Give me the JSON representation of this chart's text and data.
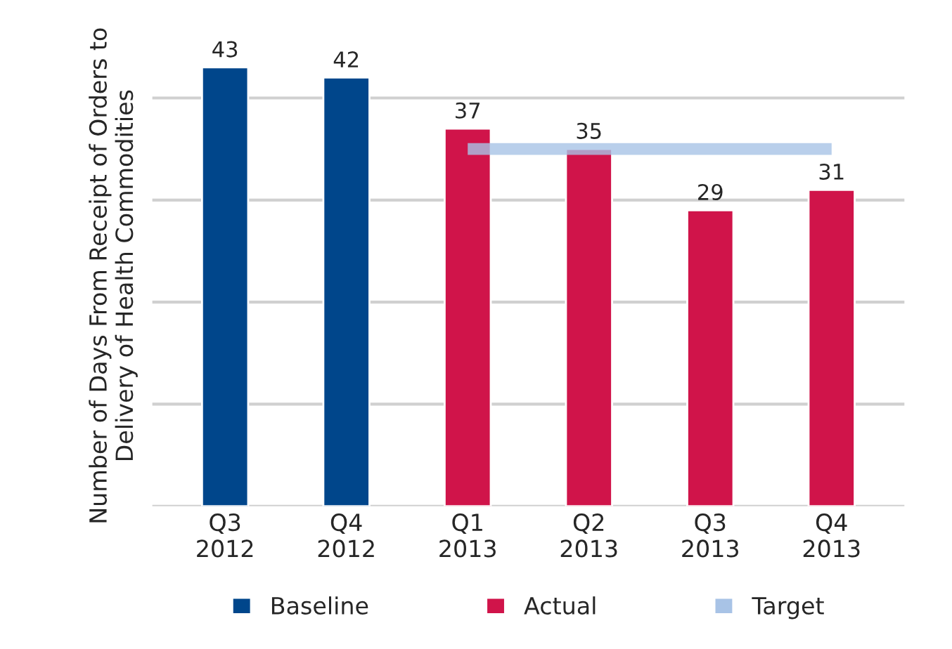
{
  "chart_data": {
    "type": "bar",
    "ylabel": "Number of Days From Receipt of Orders to\nDelivery of Health Commodities",
    "categories": [
      "Q3\n2012",
      "Q4\n2012",
      "Q1\n2013",
      "Q2\n2013",
      "Q3\n2013",
      "Q4\n2013"
    ],
    "series": [
      {
        "name": "Baseline",
        "color": "#00468b",
        "values": [
          43,
          42,
          null,
          null,
          null,
          null
        ],
        "value_labels": [
          "43",
          "42",
          null,
          null,
          null,
          null
        ]
      },
      {
        "name": "Actual",
        "color": "#d0144a",
        "values": [
          null,
          null,
          37,
          35,
          29,
          31
        ],
        "value_labels": [
          null,
          null,
          "37",
          "35",
          "29",
          "31"
        ]
      },
      {
        "name": "Target",
        "type": "line",
        "color": "#a8c3e6",
        "values": [
          null,
          null,
          35,
          35,
          35,
          35
        ]
      }
    ],
    "yticks": [
      {
        "value": 0,
        "label": null
      },
      {
        "value": 10,
        "label": null
      },
      {
        "value": 20,
        "label": null
      },
      {
        "value": 30,
        "label": null
      },
      {
        "value": 40,
        "label": null
      }
    ],
    "grid": "y",
    "legend": "bottom"
  }
}
